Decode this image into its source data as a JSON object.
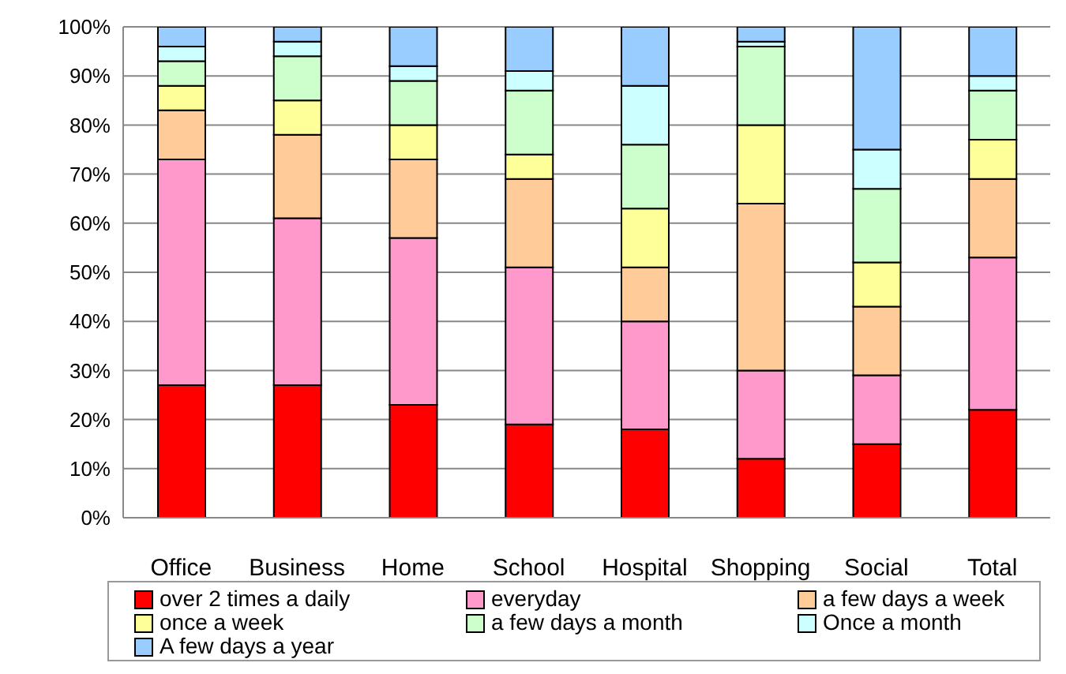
{
  "chart_data": {
    "type": "bar",
    "stacked": true,
    "categories": [
      "Office",
      "Business",
      "Home",
      "School",
      "Hospital",
      "Shopping",
      "Social",
      "Total"
    ],
    "series": [
      {
        "name": "over 2 times a daily",
        "color": "#ff0000",
        "values": [
          27,
          27,
          23,
          19,
          18,
          12,
          15,
          22
        ]
      },
      {
        "name": "everyday",
        "color": "#ff99cc",
        "values": [
          46,
          34,
          34,
          32,
          22,
          18,
          14,
          31
        ]
      },
      {
        "name": "a few days a week",
        "color": "#ffcc99",
        "values": [
          10,
          17,
          16,
          18,
          11,
          34,
          14,
          16
        ]
      },
      {
        "name": "once a week",
        "color": "#ffff99",
        "values": [
          5,
          7,
          7,
          5,
          12,
          16,
          9,
          8
        ]
      },
      {
        "name": "a few days a month",
        "color": "#ccffcc",
        "values": [
          5,
          9,
          9,
          13,
          13,
          16,
          15,
          10
        ]
      },
      {
        "name": "Once a month",
        "color": "#ccffff",
        "values": [
          3,
          3,
          3,
          4,
          12,
          1,
          8,
          3
        ]
      },
      {
        "name": "A few days a year",
        "color": "#99ccff",
        "values": [
          4,
          3,
          8,
          9,
          12,
          3,
          25,
          10
        ]
      }
    ],
    "ylim": [
      0,
      100
    ],
    "yticks": [
      {
        "value": 0,
        "label": "0%"
      },
      {
        "value": 10,
        "label": "10%"
      },
      {
        "value": 20,
        "label": "20%"
      },
      {
        "value": 30,
        "label": "30%"
      },
      {
        "value": 40,
        "label": "40%"
      },
      {
        "value": 50,
        "label": "50%"
      },
      {
        "value": 60,
        "label": "60%"
      },
      {
        "value": 70,
        "label": "70%"
      },
      {
        "value": 80,
        "label": "80%"
      },
      {
        "value": 90,
        "label": "90%"
      },
      {
        "value": 100,
        "label": "100%"
      }
    ],
    "grid": "y",
    "legend": "bottom"
  }
}
